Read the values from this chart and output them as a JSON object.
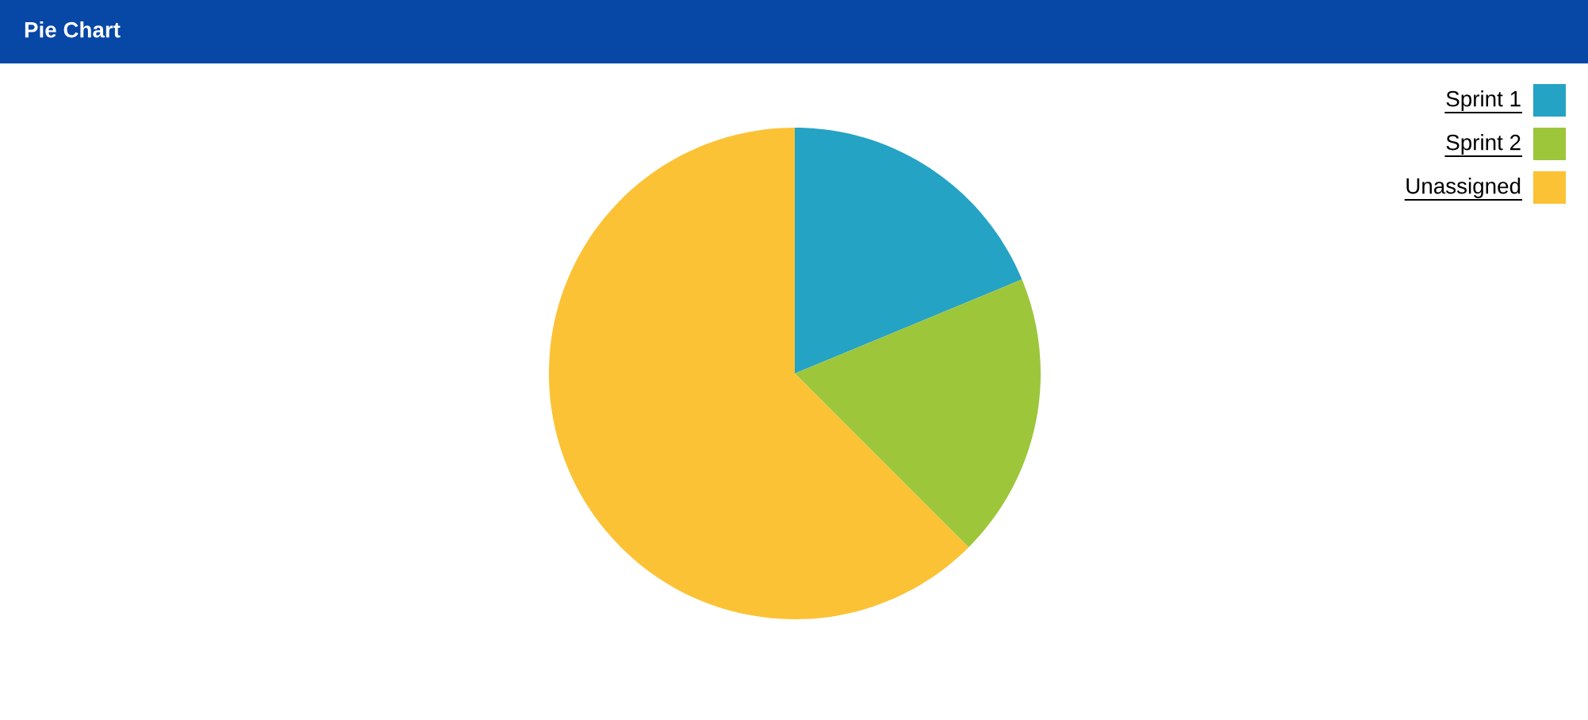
{
  "chart_data": {
    "type": "pie",
    "title": "Pie Chart",
    "categories": [
      "Sprint 1",
      "Sprint 2",
      "Unassigned"
    ],
    "values": [
      18.75,
      18.75,
      62.5
    ],
    "colors": [
      "#24a3c4",
      "#9ec63b",
      "#fcc236"
    ],
    "legend": "top right"
  }
}
